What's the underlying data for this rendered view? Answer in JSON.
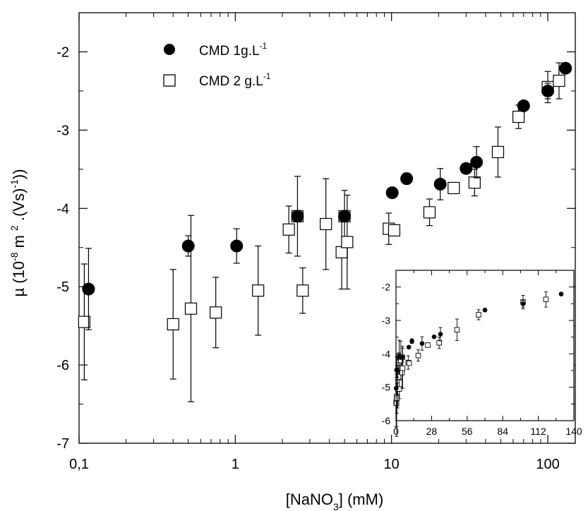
{
  "chart_data": [
    {
      "type": "scatter",
      "panel": "main",
      "xscale": "log",
      "xlim": [
        0.1,
        150
      ],
      "ylim": [
        -7,
        -1.5
      ],
      "xticks": [
        {
          "value": 0.1,
          "label": "0,1"
        },
        {
          "value": 1,
          "label": "1"
        },
        {
          "value": 10,
          "label": "10"
        },
        {
          "value": 100,
          "label": "100"
        }
      ],
      "yticks": [
        {
          "value": -2,
          "label": "-2"
        },
        {
          "value": -3,
          "label": "-3"
        },
        {
          "value": -4,
          "label": "-4"
        },
        {
          "value": -5,
          "label": "-5"
        },
        {
          "value": -6,
          "label": "-6"
        },
        {
          "value": -7,
          "label": "-7"
        }
      ],
      "xlabel": {
        "pre": "[NaNO",
        "sub": "3",
        "post": "] (mM)"
      },
      "ylabel": {
        "mu": "µ (10",
        "exp1": "-8",
        "mid1": " m ",
        "exp2": "2",
        "mid2": " .(Vs)",
        "exp3": "-1",
        "post": "))"
      },
      "legend_position": "top-left",
      "series": [
        {
          "name": "CMD 1g.L-1",
          "legend": {
            "base": "CMD 1g.L",
            "sup": "-1"
          },
          "marker": "filled-circle",
          "points": [
            {
              "x": 0.115,
              "y": -5.03,
              "err": 0.52
            },
            {
              "x": 0.5,
              "y": -4.48,
              "err": 0.13
            },
            {
              "x": 1.02,
              "y": -4.48,
              "err": 0.22
            },
            {
              "x": 2.5,
              "y": -4.1,
              "err": 0.0
            },
            {
              "x": 5.0,
              "y": -4.1,
              "err": 0.0
            },
            {
              "x": 10.1,
              "y": -3.8,
              "err": 0.0
            },
            {
              "x": 12.5,
              "y": -3.62,
              "err": 0.07
            },
            {
              "x": 20.5,
              "y": -3.69,
              "err": 0.2
            },
            {
              "x": 30.0,
              "y": -3.49,
              "err": 0.0
            },
            {
              "x": 35.0,
              "y": -3.41,
              "err": 0.2
            },
            {
              "x": 70.0,
              "y": -2.69,
              "err": 0.0
            },
            {
              "x": 100.0,
              "y": -2.5,
              "err": 0.1
            },
            {
              "x": 130.0,
              "y": -2.21,
              "err": 0.0
            }
          ]
        },
        {
          "name": "CMD 2 g.L-1",
          "legend": {
            "base": "CMD 2 g.L",
            "sup": "-1"
          },
          "marker": "open-square",
          "points": [
            {
              "x": 0.108,
              "y": -5.45,
              "err": 0.74
            },
            {
              "x": 0.4,
              "y": -5.48,
              "err": 0.7
            },
            {
              "x": 0.52,
              "y": -5.28,
              "err": 1.19
            },
            {
              "x": 0.75,
              "y": -5.33,
              "err": 0.45
            },
            {
              "x": 1.4,
              "y": -5.05,
              "err": 0.57
            },
            {
              "x": 2.2,
              "y": -4.27,
              "err": 0.3
            },
            {
              "x": 2.5,
              "y": -4.1,
              "err": 0.51
            },
            {
              "x": 2.7,
              "y": -5.05,
              "err": 0.29
            },
            {
              "x": 3.8,
              "y": -4.2,
              "err": 0.58
            },
            {
              "x": 4.8,
              "y": -4.56,
              "err": 0.47
            },
            {
              "x": 5.0,
              "y": -4.1,
              "err": 0.33
            },
            {
              "x": 5.2,
              "y": -4.43,
              "err": 0.6
            },
            {
              "x": 9.6,
              "y": -4.26,
              "err": 0.2
            },
            {
              "x": 10.4,
              "y": -4.28,
              "err": 0.0
            },
            {
              "x": 17.5,
              "y": -4.05,
              "err": 0.17
            },
            {
              "x": 25.0,
              "y": -3.74,
              "err": 0.06
            },
            {
              "x": 34.0,
              "y": -3.67,
              "err": 0.17
            },
            {
              "x": 48.0,
              "y": -3.28,
              "err": 0.32
            },
            {
              "x": 65.0,
              "y": -2.83,
              "err": 0.15
            },
            {
              "x": 100.0,
              "y": -2.45,
              "err": 0.2
            },
            {
              "x": 118.0,
              "y": -2.37,
              "err": 0.23
            }
          ]
        }
      ]
    },
    {
      "type": "scatter",
      "panel": "inset",
      "xscale": "linear",
      "xlim": [
        0,
        140
      ],
      "ylim": [
        -6,
        -1.5
      ],
      "xticks": [
        {
          "value": 0,
          "label": "0"
        },
        {
          "value": 28,
          "label": "28"
        },
        {
          "value": 56,
          "label": "56"
        },
        {
          "value": 84,
          "label": "84"
        },
        {
          "value": 112,
          "label": "112"
        },
        {
          "value": 140,
          "label": "140"
        }
      ],
      "yticks": [
        {
          "value": -2,
          "label": "-2"
        },
        {
          "value": -3,
          "label": "-3"
        },
        {
          "value": -4,
          "label": "-4"
        },
        {
          "value": -5,
          "label": "-5"
        },
        {
          "value": -6,
          "label": "-6"
        }
      ],
      "series_from": "main"
    }
  ]
}
